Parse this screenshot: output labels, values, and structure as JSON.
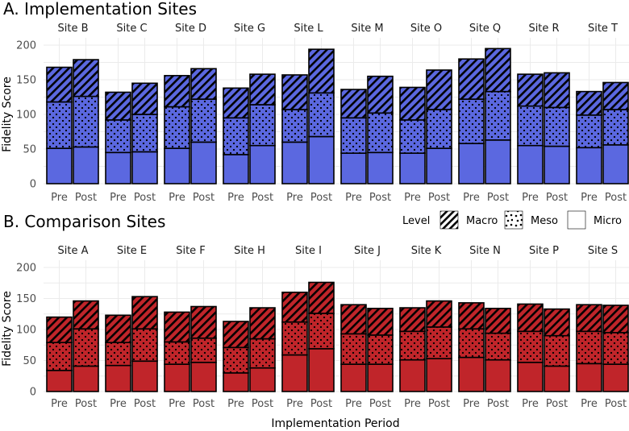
{
  "chart_data": [
    {
      "type": "bar",
      "stacked": true,
      "title": "A. Implementation Sites",
      "xlabel": "",
      "ylabel": "Fidelity Score",
      "ylim": [
        0,
        210
      ],
      "yticks": [
        0,
        50,
        100,
        150,
        200
      ],
      "fill_color": "#5b68e0",
      "sites": [
        "Site B",
        "Site C",
        "Site D",
        "Site G",
        "Site L",
        "Site M",
        "Site O",
        "Site Q",
        "Site R",
        "Site T"
      ],
      "periods": [
        "Pre",
        "Post"
      ],
      "series": [
        {
          "name": "Micro",
          "pattern": "solid",
          "values": [
            [
              51,
              53
            ],
            [
              45,
              46
            ],
            [
              51,
              60
            ],
            [
              42,
              55
            ],
            [
              60,
              68
            ],
            [
              44,
              45
            ],
            [
              44,
              51
            ],
            [
              58,
              63
            ],
            [
              55,
              54
            ],
            [
              52,
              56
            ]
          ]
        },
        {
          "name": "Meso",
          "pattern": "dots",
          "values": [
            [
              67,
              73
            ],
            [
              47,
              54
            ],
            [
              60,
              62
            ],
            [
              53,
              59
            ],
            [
              47,
              63
            ],
            [
              51,
              57
            ],
            [
              48,
              56
            ],
            [
              64,
              70
            ],
            [
              57,
              56
            ],
            [
              47,
              51
            ]
          ]
        },
        {
          "name": "Macro",
          "pattern": "stripes",
          "values": [
            [
              50,
              53
            ],
            [
              40,
              45
            ],
            [
              45,
              44
            ],
            [
              43,
              44
            ],
            [
              50,
              63
            ],
            [
              41,
              53
            ],
            [
              47,
              57
            ],
            [
              58,
              62
            ],
            [
              46,
              50
            ],
            [
              34,
              39
            ]
          ]
        }
      ]
    },
    {
      "type": "bar",
      "stacked": true,
      "title": "B. Comparison Sites",
      "xlabel": "Implementation Period",
      "ylabel": "Fidelity Score",
      "ylim": [
        0,
        210
      ],
      "yticks": [
        0,
        50,
        100,
        150,
        200
      ],
      "fill_color": "#c0252a",
      "sites": [
        "Site A",
        "Site E",
        "Site F",
        "Site H",
        "Site I",
        "Site J",
        "Site K",
        "Site N",
        "Site P",
        "Site S"
      ],
      "periods": [
        "Pre",
        "Post"
      ],
      "series": [
        {
          "name": "Micro",
          "pattern": "solid",
          "values": [
            [
              34,
              41
            ],
            [
              42,
              49
            ],
            [
              44,
              47
            ],
            [
              30,
              38
            ],
            [
              59,
              69
            ],
            [
              44,
              44
            ],
            [
              51,
              53
            ],
            [
              55,
              51
            ],
            [
              47,
              41
            ],
            [
              45,
              44
            ]
          ]
        },
        {
          "name": "Meso",
          "pattern": "dots",
          "values": [
            [
              45,
              60
            ],
            [
              37,
              52
            ],
            [
              36,
              39
            ],
            [
              41,
              47
            ],
            [
              53,
              57
            ],
            [
              49,
              47
            ],
            [
              46,
              51
            ],
            [
              46,
              43
            ],
            [
              50,
              49
            ],
            [
              52,
              51
            ]
          ]
        },
        {
          "name": "Macro",
          "pattern": "stripes",
          "values": [
            [
              41,
              45
            ],
            [
              44,
              52
            ],
            [
              48,
              51
            ],
            [
              42,
              50
            ],
            [
              48,
              50
            ],
            [
              47,
              43
            ],
            [
              38,
              42
            ],
            [
              42,
              40
            ],
            [
              44,
              43
            ],
            [
              43,
              44
            ]
          ]
        }
      ]
    }
  ],
  "legend": {
    "title": "Level",
    "items": [
      {
        "label": "Macro",
        "pattern": "stripes"
      },
      {
        "label": "Meso",
        "pattern": "dots"
      },
      {
        "label": "Micro",
        "pattern": "solid"
      }
    ]
  }
}
